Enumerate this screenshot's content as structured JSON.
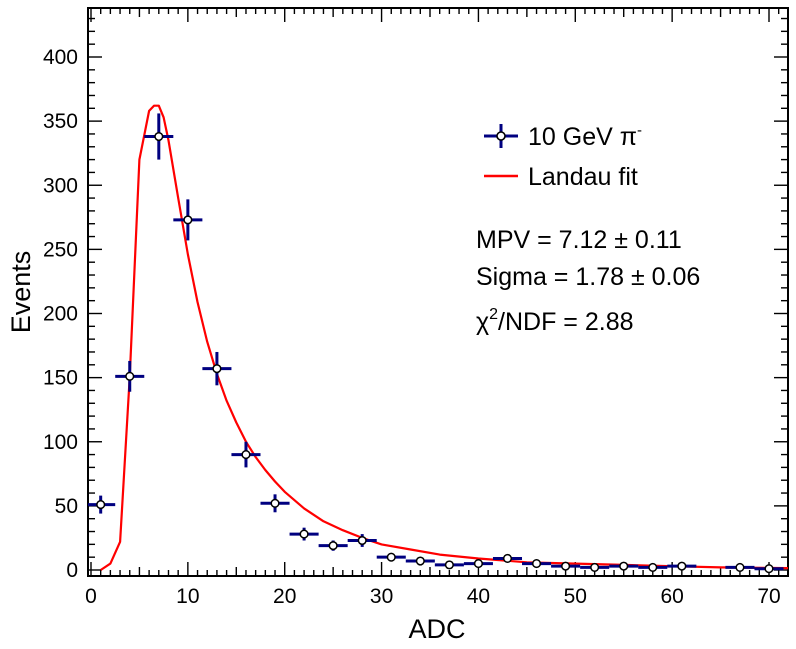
{
  "chart_data": {
    "type": "scatter",
    "title": "",
    "xlabel": "ADC",
    "ylabel": "Events",
    "xlim": [
      0,
      72
    ],
    "ylim": [
      0,
      440
    ],
    "xticks": [
      "0",
      "10",
      "20",
      "30",
      "40",
      "50",
      "60",
      "70"
    ],
    "yticks": [
      "0",
      "50",
      "100",
      "150",
      "200",
      "250",
      "300",
      "350",
      "400"
    ],
    "grid": false,
    "legend_position": "top-right",
    "series": [
      {
        "name": "10 GeV π⁻",
        "kind": "points-with-errors",
        "color": "#000080",
        "x": [
          1,
          4,
          7,
          10,
          13,
          16,
          19,
          22,
          25,
          28,
          31,
          34,
          37,
          40,
          43,
          46,
          49,
          52,
          55,
          58,
          61,
          67,
          70
        ],
        "x_half_width": 1.5,
        "y": [
          51,
          151,
          338,
          273,
          157,
          90,
          52,
          28,
          19,
          23,
          10,
          7,
          4,
          5,
          9,
          5,
          3,
          2,
          3,
          2,
          3,
          2,
          1
        ],
        "y_error": [
          7,
          12,
          18,
          16,
          13,
          10,
          7,
          5,
          4,
          5,
          3,
          3,
          2,
          2,
          3,
          2,
          2,
          1,
          2,
          1,
          2,
          1,
          1
        ]
      },
      {
        "name": "Landau fit",
        "kind": "line",
        "color": "#ff0000",
        "x": [
          1,
          2,
          3,
          4,
          5,
          6,
          6.5,
          7,
          7.5,
          8,
          9,
          10,
          11,
          12,
          13,
          14,
          15,
          16,
          17,
          18,
          19,
          20,
          22,
          24,
          26,
          28,
          30,
          33,
          36,
          40,
          45,
          50,
          55,
          60,
          65,
          72
        ],
        "y": [
          0,
          5,
          22,
          150,
          320,
          358,
          362,
          362,
          353,
          335,
          290,
          246,
          209,
          178,
          153,
          132,
          115,
          100,
          88,
          78,
          69,
          61,
          48,
          38,
          31,
          25,
          20,
          16,
          12,
          9,
          6,
          5,
          4,
          3,
          2,
          1.5
        ]
      }
    ],
    "annotations": {
      "mpv": "MPV = 7.12 ± 0.11",
      "sigma": "Sigma = 1.78 ± 0.06",
      "chi2_symbol": "χ",
      "chi2_sup": "2",
      "chi2_rest": "/NDF = 2.88"
    },
    "legend": {
      "data_label": "10 GeV π",
      "data_label_sup": "-",
      "fit_label": "Landau fit"
    }
  }
}
